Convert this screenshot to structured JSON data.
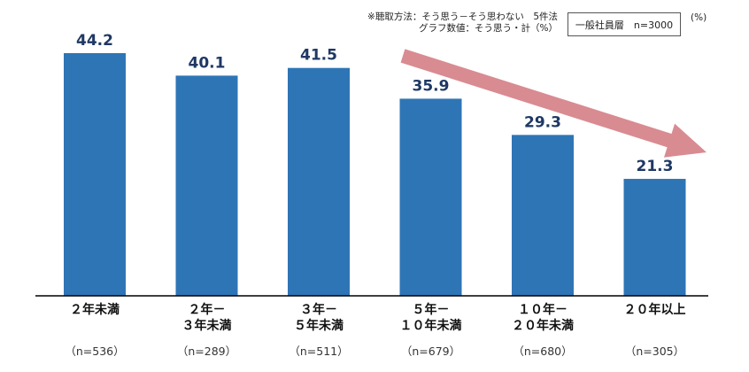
{
  "notes": {
    "method": "※聴取方法：そう思う－そう思わない　5件法",
    "graph_value": "グラフ数値：そう思う・計（%）"
  },
  "sample_label": "一般社員層　n=3000",
  "unit": "(%)",
  "colors": {
    "bar": "#2E75B6",
    "value_label": "#1F3864",
    "arrow": "#D98B92",
    "axis": "#000000"
  },
  "chart_data": {
    "type": "bar",
    "categories": [
      [
        "２年未満"
      ],
      [
        "２年－",
        "３年未満"
      ],
      [
        "３年－",
        "５年未満"
      ],
      [
        "５年－",
        "１０年未満"
      ],
      [
        "１０年－",
        "２０年未満"
      ],
      [
        "２０年以上"
      ]
    ],
    "sample_sizes": [
      "（n=536）",
      "（n=289）",
      "（n=511）",
      "（n=679）",
      "（n=680）",
      "（n=305）"
    ],
    "values": [
      44.2,
      40.1,
      41.5,
      35.9,
      29.3,
      21.3
    ],
    "value_labels": [
      "44.2",
      "40.1",
      "41.5",
      "35.9",
      "29.3",
      "21.3"
    ],
    "ylim": [
      0,
      50
    ],
    "grid": false,
    "trend_arrow": "down"
  }
}
